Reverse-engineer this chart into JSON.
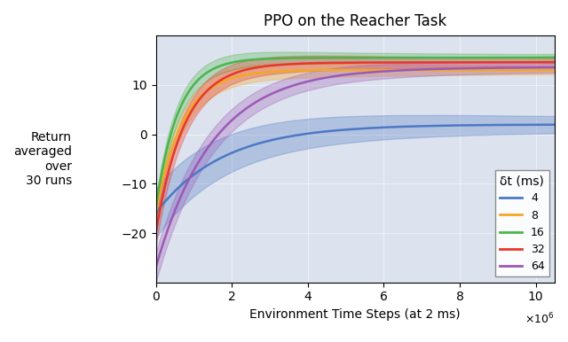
{
  "title": "PPO on the Reacher Task",
  "xlabel": "Environment Time Steps (at 2 ms)",
  "ylabel": "Return\naveraged\nover\n30 runs",
  "xlim": [
    0,
    10500000.0
  ],
  "ylim": [
    -30,
    20
  ],
  "xticks": [
    0,
    2000000,
    4000000,
    6000000,
    8000000,
    10000000
  ],
  "yticks": [
    -20,
    -10,
    0,
    10
  ],
  "bg_color": "#dde3ee",
  "legend_title": "δt (ms)",
  "series": [
    {
      "label": "4",
      "color": "#4c78c4",
      "final_mean": 2.0,
      "start_mean": -16.0,
      "rise_rate": 0.6,
      "std_scale": 2.5,
      "x_shift": 0.0
    },
    {
      "label": "8",
      "color": "#f5a623",
      "final_mean": 13.0,
      "start_mean": -16.0,
      "rise_rate": 1.5,
      "std_scale": 1.2,
      "x_shift": 0.0
    },
    {
      "label": "16",
      "color": "#4ab54a",
      "final_mean": 15.5,
      "start_mean": -15.0,
      "rise_rate": 1.8,
      "std_scale": 1.0,
      "x_shift": 0.0
    },
    {
      "label": "32",
      "color": "#e8362a",
      "final_mean": 14.5,
      "start_mean": -20.0,
      "rise_rate": 1.4,
      "std_scale": 1.3,
      "x_shift": 0.0
    },
    {
      "label": "64",
      "color": "#9b59b6",
      "final_mean": 13.5,
      "start_mean": -27.0,
      "rise_rate": 0.7,
      "std_scale": 1.5,
      "x_shift": 0.0
    }
  ],
  "n_points": 300,
  "x_max": 10500000.0,
  "figsize": [
    6.4,
    3.86
  ],
  "dpi": 100
}
